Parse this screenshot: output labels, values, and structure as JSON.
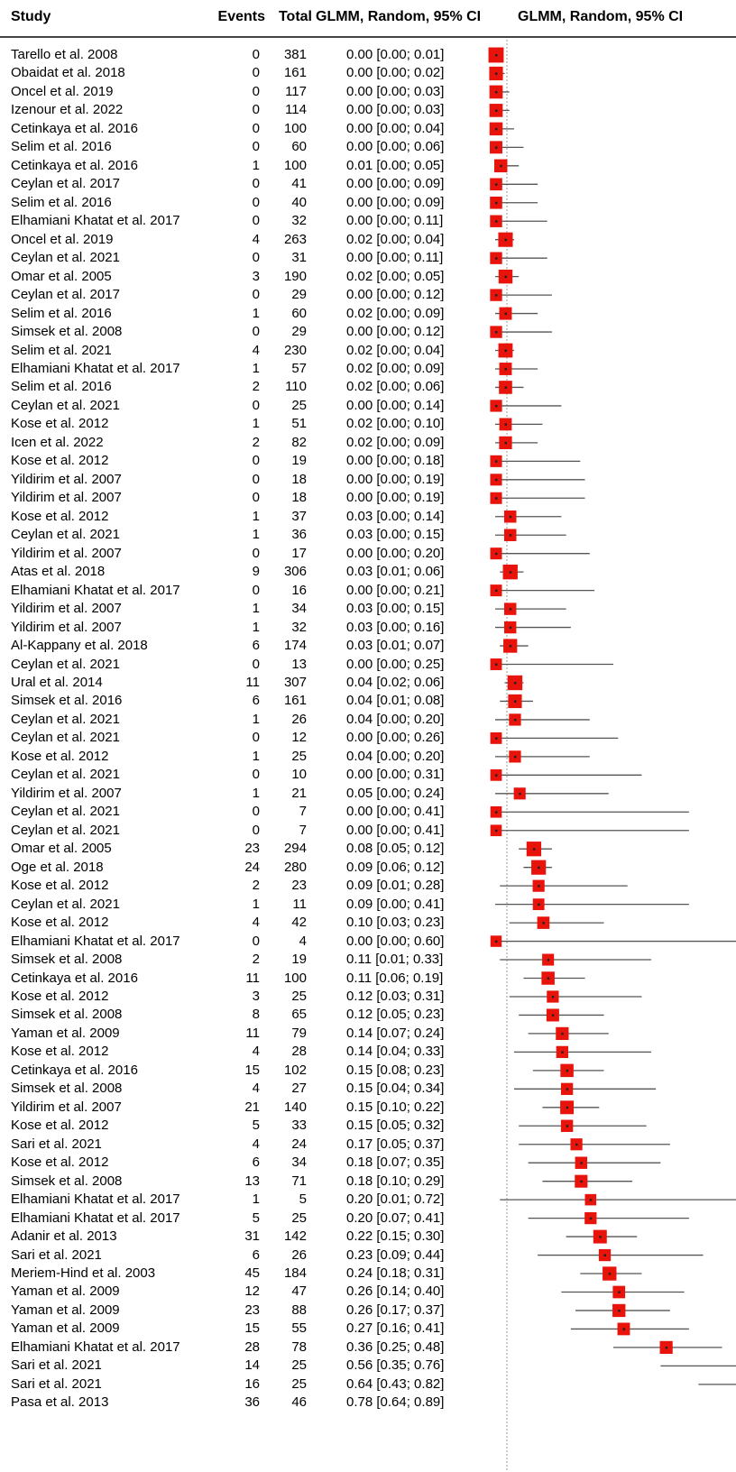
{
  "header": {
    "study": "Study",
    "events": "Events",
    "total": "Total",
    "ci": "GLMM, Random, 95% CI",
    "plot": "GLMM, Random, 95% CI"
  },
  "colors": {
    "box": "#e8140c",
    "line": "#555555",
    "reference": "#999999"
  },
  "chart_data": {
    "type": "forest",
    "reference_line": 0,
    "xlim": [
      0,
      0.85
    ],
    "studies": [
      {
        "study": "Tarello et al. 2008",
        "events": "0",
        "total": "381",
        "ci": "0.00 [0.00; 0.01]",
        "est": 0.0,
        "lo": 0.0,
        "hi": 0.01
      },
      {
        "study": "Obaidat et al. 2018",
        "events": "0",
        "total": "161",
        "ci": "0.00 [0.00; 0.02]",
        "est": 0.0,
        "lo": 0.0,
        "hi": 0.02
      },
      {
        "study": "Oncel et al. 2019",
        "events": "0",
        "total": "117",
        "ci": "0.00 [0.00; 0.03]",
        "est": 0.0,
        "lo": 0.0,
        "hi": 0.03
      },
      {
        "study": "Izenour et al. 2022",
        "events": "0",
        "total": "114",
        "ci": "0.00 [0.00; 0.03]",
        "est": 0.0,
        "lo": 0.0,
        "hi": 0.03
      },
      {
        "study": "Cetinkaya et al. 2016",
        "events": "0",
        "total": "100",
        "ci": "0.00 [0.00; 0.04]",
        "est": 0.0,
        "lo": 0.0,
        "hi": 0.04
      },
      {
        "study": "Selim et al. 2016",
        "events": "0",
        "total": "60",
        "ci": "0.00 [0.00; 0.06]",
        "est": 0.0,
        "lo": 0.0,
        "hi": 0.06
      },
      {
        "study": "Cetinkaya et al. 2016",
        "events": "1",
        "total": "100",
        "ci": "0.01 [0.00; 0.05]",
        "est": 0.01,
        "lo": 0.0,
        "hi": 0.05
      },
      {
        "study": "Ceylan et al. 2017",
        "events": "0",
        "total": "41",
        "ci": "0.00 [0.00; 0.09]",
        "est": 0.0,
        "lo": 0.0,
        "hi": 0.09
      },
      {
        "study": "Selim et al. 2016",
        "events": "0",
        "total": "40",
        "ci": "0.00 [0.00; 0.09]",
        "est": 0.0,
        "lo": 0.0,
        "hi": 0.09
      },
      {
        "study": "Elhamiani Khatat et al. 2017",
        "events": "0",
        "total": "32",
        "ci": "0.00 [0.00; 0.11]",
        "est": 0.0,
        "lo": 0.0,
        "hi": 0.11
      },
      {
        "study": "Oncel et al. 2019",
        "events": "4",
        "total": "263",
        "ci": "0.02 [0.00; 0.04]",
        "est": 0.02,
        "lo": 0.0,
        "hi": 0.04
      },
      {
        "study": "Ceylan et al. 2021",
        "events": "0",
        "total": "31",
        "ci": "0.00 [0.00; 0.11]",
        "est": 0.0,
        "lo": 0.0,
        "hi": 0.11
      },
      {
        "study": "Omar et al. 2005",
        "events": "3",
        "total": "190",
        "ci": "0.02 [0.00; 0.05]",
        "est": 0.02,
        "lo": 0.0,
        "hi": 0.05
      },
      {
        "study": "Ceylan et al. 2017",
        "events": "0",
        "total": "29",
        "ci": "0.00 [0.00; 0.12]",
        "est": 0.0,
        "lo": 0.0,
        "hi": 0.12
      },
      {
        "study": "Selim et al. 2016",
        "events": "1",
        "total": "60",
        "ci": "0.02 [0.00; 0.09]",
        "est": 0.02,
        "lo": 0.0,
        "hi": 0.09
      },
      {
        "study": "Simsek et al. 2008",
        "events": "0",
        "total": "29",
        "ci": "0.00 [0.00; 0.12]",
        "est": 0.0,
        "lo": 0.0,
        "hi": 0.12
      },
      {
        "study": "Selim et al. 2021",
        "events": "4",
        "total": "230",
        "ci": "0.02 [0.00; 0.04]",
        "est": 0.02,
        "lo": 0.0,
        "hi": 0.04
      },
      {
        "study": "Elhamiani Khatat et al. 2017",
        "events": "1",
        "total": "57",
        "ci": "0.02 [0.00; 0.09]",
        "est": 0.02,
        "lo": 0.0,
        "hi": 0.09
      },
      {
        "study": "Selim et al. 2016",
        "events": "2",
        "total": "110",
        "ci": "0.02 [0.00; 0.06]",
        "est": 0.02,
        "lo": 0.0,
        "hi": 0.06
      },
      {
        "study": "Ceylan et al. 2021",
        "events": "0",
        "total": "25",
        "ci": "0.00 [0.00; 0.14]",
        "est": 0.0,
        "lo": 0.0,
        "hi": 0.14
      },
      {
        "study": "Kose et al. 2012",
        "events": "1",
        "total": "51",
        "ci": "0.02 [0.00; 0.10]",
        "est": 0.02,
        "lo": 0.0,
        "hi": 0.1
      },
      {
        "study": "Icen et al. 2022",
        "events": "2",
        "total": "82",
        "ci": "0.02 [0.00; 0.09]",
        "est": 0.02,
        "lo": 0.0,
        "hi": 0.09
      },
      {
        "study": "Kose et al. 2012",
        "events": "0",
        "total": "19",
        "ci": "0.00 [0.00; 0.18]",
        "est": 0.0,
        "lo": 0.0,
        "hi": 0.18
      },
      {
        "study": "Yildirim et al. 2007",
        "events": "0",
        "total": "18",
        "ci": "0.00 [0.00; 0.19]",
        "est": 0.0,
        "lo": 0.0,
        "hi": 0.19
      },
      {
        "study": "Yildirim et al. 2007",
        "events": "0",
        "total": "18",
        "ci": "0.00 [0.00; 0.19]",
        "est": 0.0,
        "lo": 0.0,
        "hi": 0.19
      },
      {
        "study": "Kose et al. 2012",
        "events": "1",
        "total": "37",
        "ci": "0.03 [0.00; 0.14]",
        "est": 0.03,
        "lo": 0.0,
        "hi": 0.14
      },
      {
        "study": "Ceylan et al. 2021",
        "events": "1",
        "total": "36",
        "ci": "0.03 [0.00; 0.15]",
        "est": 0.03,
        "lo": 0.0,
        "hi": 0.15
      },
      {
        "study": "Yildirim et al. 2007",
        "events": "0",
        "total": "17",
        "ci": "0.00 [0.00; 0.20]",
        "est": 0.0,
        "lo": 0.0,
        "hi": 0.2
      },
      {
        "study": "Atas et al. 2018",
        "events": "9",
        "total": "306",
        "ci": "0.03 [0.01; 0.06]",
        "est": 0.03,
        "lo": 0.01,
        "hi": 0.06
      },
      {
        "study": "Elhamiani Khatat et al. 2017",
        "events": "0",
        "total": "16",
        "ci": "0.00 [0.00; 0.21]",
        "est": 0.0,
        "lo": 0.0,
        "hi": 0.21
      },
      {
        "study": "Yildirim et al. 2007",
        "events": "1",
        "total": "34",
        "ci": "0.03 [0.00; 0.15]",
        "est": 0.03,
        "lo": 0.0,
        "hi": 0.15
      },
      {
        "study": "Yildirim et al. 2007",
        "events": "1",
        "total": "32",
        "ci": "0.03 [0.00; 0.16]",
        "est": 0.03,
        "lo": 0.0,
        "hi": 0.16
      },
      {
        "study": "Al-Kappany et al. 2018",
        "events": "6",
        "total": "174",
        "ci": "0.03 [0.01; 0.07]",
        "est": 0.03,
        "lo": 0.01,
        "hi": 0.07
      },
      {
        "study": "Ceylan et al. 2021",
        "events": "0",
        "total": "13",
        "ci": "0.00 [0.00; 0.25]",
        "est": 0.0,
        "lo": 0.0,
        "hi": 0.25
      },
      {
        "study": "Ural et al. 2014",
        "events": "11",
        "total": "307",
        "ci": "0.04 [0.02; 0.06]",
        "est": 0.04,
        "lo": 0.02,
        "hi": 0.06
      },
      {
        "study": "Simsek et al. 2016",
        "events": "6",
        "total": "161",
        "ci": "0.04 [0.01; 0.08]",
        "est": 0.04,
        "lo": 0.01,
        "hi": 0.08
      },
      {
        "study": "Ceylan et al. 2021",
        "events": "1",
        "total": "26",
        "ci": "0.04 [0.00; 0.20]",
        "est": 0.04,
        "lo": 0.0,
        "hi": 0.2
      },
      {
        "study": "Ceylan et al. 2021",
        "events": "0",
        "total": "12",
        "ci": "0.00 [0.00; 0.26]",
        "est": 0.0,
        "lo": 0.0,
        "hi": 0.26
      },
      {
        "study": "Kose et al. 2012",
        "events": "1",
        "total": "25",
        "ci": "0.04 [0.00; 0.20]",
        "est": 0.04,
        "lo": 0.0,
        "hi": 0.2
      },
      {
        "study": "Ceylan et al. 2021",
        "events": "0",
        "total": "10",
        "ci": "0.00 [0.00; 0.31]",
        "est": 0.0,
        "lo": 0.0,
        "hi": 0.31
      },
      {
        "study": "Yildirim et al. 2007",
        "events": "1",
        "total": "21",
        "ci": "0.05 [0.00; 0.24]",
        "est": 0.05,
        "lo": 0.0,
        "hi": 0.24
      },
      {
        "study": "Ceylan et al. 2021",
        "events": "0",
        "total": "7",
        "ci": "0.00 [0.00; 0.41]",
        "est": 0.0,
        "lo": 0.0,
        "hi": 0.41
      },
      {
        "study": "Ceylan et al. 2021",
        "events": "0",
        "total": "7",
        "ci": "0.00 [0.00; 0.41]",
        "est": 0.0,
        "lo": 0.0,
        "hi": 0.41
      },
      {
        "study": "Omar et al. 2005",
        "events": "23",
        "total": "294",
        "ci": "0.08 [0.05; 0.12]",
        "est": 0.08,
        "lo": 0.05,
        "hi": 0.12
      },
      {
        "study": "Oge et al. 2018",
        "events": "24",
        "total": "280",
        "ci": "0.09 [0.06; 0.12]",
        "est": 0.09,
        "lo": 0.06,
        "hi": 0.12
      },
      {
        "study": "Kose et al. 2012",
        "events": "2",
        "total": "23",
        "ci": "0.09 [0.01; 0.28]",
        "est": 0.09,
        "lo": 0.01,
        "hi": 0.28
      },
      {
        "study": "Ceylan et al. 2021",
        "events": "1",
        "total": "11",
        "ci": "0.09 [0.00; 0.41]",
        "est": 0.09,
        "lo": 0.0,
        "hi": 0.41
      },
      {
        "study": "Kose et al. 2012",
        "events": "4",
        "total": "42",
        "ci": "0.10 [0.03; 0.23]",
        "est": 0.1,
        "lo": 0.03,
        "hi": 0.23
      },
      {
        "study": "Elhamiani Khatat et al. 2017",
        "events": "0",
        "total": "4",
        "ci": "0.00 [0.00; 0.60]",
        "est": 0.0,
        "lo": 0.0,
        "hi": 0.6
      },
      {
        "study": "Simsek et al. 2008",
        "events": "2",
        "total": "19",
        "ci": "0.11 [0.01; 0.33]",
        "est": 0.11,
        "lo": 0.01,
        "hi": 0.33
      },
      {
        "study": "Cetinkaya et al. 2016",
        "events": "11",
        "total": "100",
        "ci": "0.11 [0.06; 0.19]",
        "est": 0.11,
        "lo": 0.06,
        "hi": 0.19
      },
      {
        "study": "Kose et al. 2012",
        "events": "3",
        "total": "25",
        "ci": "0.12 [0.03; 0.31]",
        "est": 0.12,
        "lo": 0.03,
        "hi": 0.31
      },
      {
        "study": "Simsek et al. 2008",
        "events": "8",
        "total": "65",
        "ci": "0.12 [0.05; 0.23]",
        "est": 0.12,
        "lo": 0.05,
        "hi": 0.23
      },
      {
        "study": "Yaman et al. 2009",
        "events": "11",
        "total": "79",
        "ci": "0.14 [0.07; 0.24]",
        "est": 0.14,
        "lo": 0.07,
        "hi": 0.24
      },
      {
        "study": "Kose et al. 2012",
        "events": "4",
        "total": "28",
        "ci": "0.14 [0.04; 0.33]",
        "est": 0.14,
        "lo": 0.04,
        "hi": 0.33
      },
      {
        "study": "Cetinkaya et al. 2016",
        "events": "15",
        "total": "102",
        "ci": "0.15 [0.08; 0.23]",
        "est": 0.15,
        "lo": 0.08,
        "hi": 0.23
      },
      {
        "study": "Simsek et al. 2008",
        "events": "4",
        "total": "27",
        "ci": "0.15 [0.04; 0.34]",
        "est": 0.15,
        "lo": 0.04,
        "hi": 0.34
      },
      {
        "study": "Yildirim et al. 2007",
        "events": "21",
        "total": "140",
        "ci": "0.15 [0.10; 0.22]",
        "est": 0.15,
        "lo": 0.1,
        "hi": 0.22
      },
      {
        "study": "Kose et al. 2012",
        "events": "5",
        "total": "33",
        "ci": "0.15 [0.05; 0.32]",
        "est": 0.15,
        "lo": 0.05,
        "hi": 0.32
      },
      {
        "study": "Sari et al. 2021",
        "events": "4",
        "total": "24",
        "ci": "0.17 [0.05; 0.37]",
        "est": 0.17,
        "lo": 0.05,
        "hi": 0.37
      },
      {
        "study": "Kose et al. 2012",
        "events": "6",
        "total": "34",
        "ci": "0.18 [0.07; 0.35]",
        "est": 0.18,
        "lo": 0.07,
        "hi": 0.35
      },
      {
        "study": "Simsek et al. 2008",
        "events": "13",
        "total": "71",
        "ci": "0.18 [0.10; 0.29]",
        "est": 0.18,
        "lo": 0.1,
        "hi": 0.29
      },
      {
        "study": "Elhamiani Khatat et al. 2017",
        "events": "1",
        "total": "5",
        "ci": "0.20 [0.01; 0.72]",
        "est": 0.2,
        "lo": 0.01,
        "hi": 0.72
      },
      {
        "study": "Elhamiani Khatat et al. 2017",
        "events": "5",
        "total": "25",
        "ci": "0.20 [0.07; 0.41]",
        "est": 0.2,
        "lo": 0.07,
        "hi": 0.41
      },
      {
        "study": "Adanir et al. 2013",
        "events": "31",
        "total": "142",
        "ci": "0.22 [0.15; 0.30]",
        "est": 0.22,
        "lo": 0.15,
        "hi": 0.3
      },
      {
        "study": "Sari et al. 2021",
        "events": "6",
        "total": "26",
        "ci": "0.23 [0.09; 0.44]",
        "est": 0.23,
        "lo": 0.09,
        "hi": 0.44
      },
      {
        "study": "Meriem-Hind et al. 2003",
        "events": "45",
        "total": "184",
        "ci": "0.24 [0.18; 0.31]",
        "est": 0.24,
        "lo": 0.18,
        "hi": 0.31
      },
      {
        "study": "Yaman et al. 2009",
        "events": "12",
        "total": "47",
        "ci": "0.26 [0.14; 0.40]",
        "est": 0.26,
        "lo": 0.14,
        "hi": 0.4
      },
      {
        "study": "Yaman et al. 2009",
        "events": "23",
        "total": "88",
        "ci": "0.26 [0.17; 0.37]",
        "est": 0.26,
        "lo": 0.17,
        "hi": 0.37
      },
      {
        "study": "Yaman et al. 2009",
        "events": "15",
        "total": "55",
        "ci": "0.27 [0.16; 0.41]",
        "est": 0.27,
        "lo": 0.16,
        "hi": 0.41
      },
      {
        "study": "Elhamiani Khatat et al. 2017",
        "events": "28",
        "total": "78",
        "ci": "0.36 [0.25; 0.48]",
        "est": 0.36,
        "lo": 0.25,
        "hi": 0.48
      },
      {
        "study": "Sari et al. 2021",
        "events": "14",
        "total": "25",
        "ci": "0.56 [0.35; 0.76]",
        "est": 0.56,
        "lo": 0.35,
        "hi": 0.76
      },
      {
        "study": "Sari et al. 2021",
        "events": "16",
        "total": "25",
        "ci": "0.64 [0.43; 0.82]",
        "est": 0.64,
        "lo": 0.43,
        "hi": 0.82
      },
      {
        "study": "Pasa et al. 2013",
        "events": "36",
        "total": "46",
        "ci": "0.78 [0.64; 0.89]",
        "est": 0.78,
        "lo": 0.64,
        "hi": 0.89
      }
    ]
  }
}
